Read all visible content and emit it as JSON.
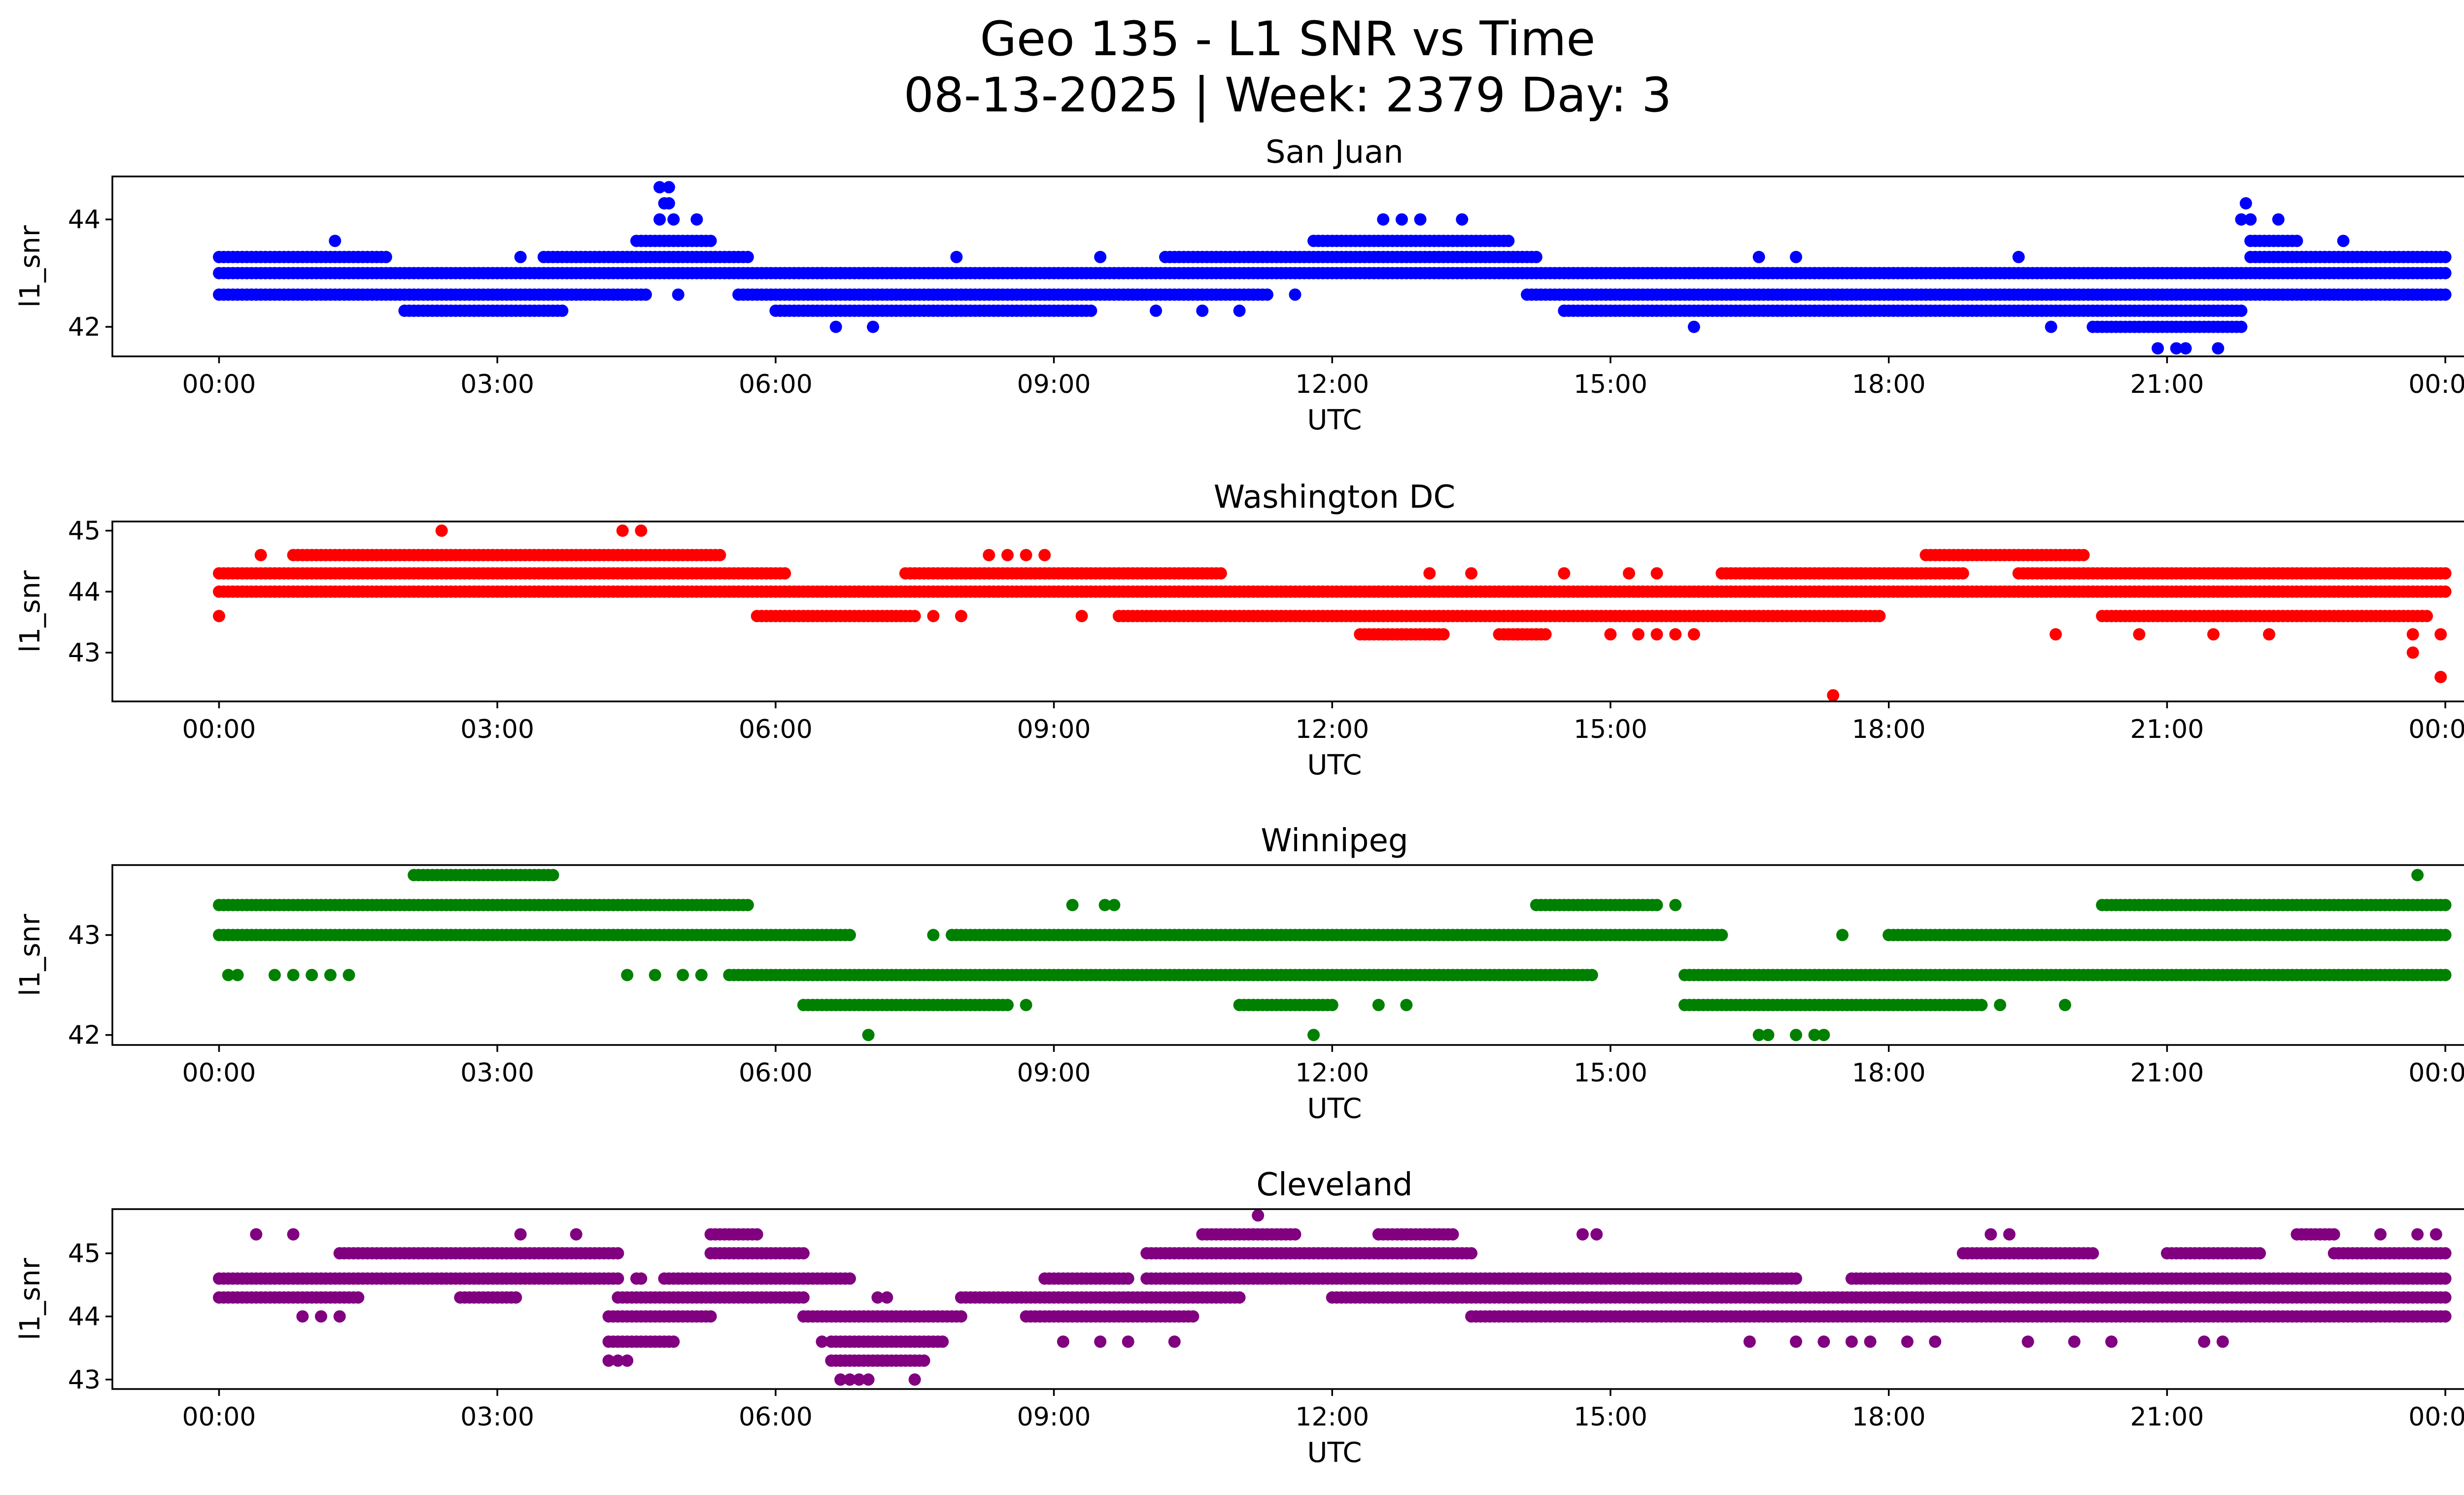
{
  "figure": {
    "title_line1": "Geo 135 - L1 SNR vs Time",
    "title_line2": "08-13-2025 | Week: 2379 Day: 3"
  },
  "chart_data": [
    {
      "type": "scatter",
      "title": "San Juan",
      "xlabel": "UTC",
      "ylabel": "l1_snr",
      "color": "#0000ff",
      "xlim_hours": [
        -1.15,
        25.2
      ],
      "ylim": [
        41.45,
        44.8
      ],
      "xticks": [
        "00:00",
        "03:00",
        "06:00",
        "09:00",
        "12:00",
        "15:00",
        "18:00",
        "21:00",
        "00:00"
      ],
      "yticks": [
        42,
        44
      ],
      "bands": [
        {
          "value": 42.6,
          "segments": [
            [
              0.0,
              4.6
            ],
            [
              5.6,
              11.3
            ],
            [
              14.1,
              24.0
            ]
          ]
        },
        {
          "value": 43.0,
          "segments": [
            [
              0.0,
              24.0
            ]
          ]
        },
        {
          "value": 43.3,
          "segments": [
            [
              0.0,
              1.8
            ],
            [
              3.5,
              5.7
            ],
            [
              10.2,
              14.2
            ],
            [
              21.9,
              24.0
            ]
          ]
        },
        {
          "value": 42.3,
          "segments": [
            [
              2.0,
              3.7
            ],
            [
              6.0,
              9.4
            ],
            [
              14.5,
              21.8
            ]
          ]
        },
        {
          "value": 43.6,
          "segments": [
            [
              4.5,
              5.3
            ],
            [
              11.8,
              13.9
            ],
            [
              21.9,
              22.4
            ]
          ]
        },
        {
          "value": 42.0,
          "segments": [
            [
              20.2,
              21.8
            ]
          ]
        }
      ],
      "points": [
        [
          4.75,
          44.6
        ],
        [
          4.85,
          44.6
        ],
        [
          4.8,
          44.3
        ],
        [
          4.85,
          44.3
        ],
        [
          4.75,
          44.0
        ],
        [
          4.9,
          44.0
        ],
        [
          5.15,
          44.0
        ],
        [
          12.55,
          44.0
        ],
        [
          12.75,
          44.0
        ],
        [
          12.95,
          44.0
        ],
        [
          13.4,
          44.0
        ],
        [
          1.25,
          43.6
        ],
        [
          21.85,
          44.3
        ],
        [
          21.8,
          44.0
        ],
        [
          21.9,
          44.0
        ],
        [
          22.2,
          44.0
        ],
        [
          22.9,
          43.6
        ],
        [
          6.65,
          42.0
        ],
        [
          7.05,
          42.0
        ],
        [
          15.9,
          42.0
        ],
        [
          19.75,
          42.0
        ],
        [
          20.9,
          41.6
        ],
        [
          21.1,
          41.6
        ],
        [
          21.2,
          41.6
        ],
        [
          21.55,
          41.6
        ],
        [
          9.5,
          43.3
        ],
        [
          3.25,
          43.3
        ],
        [
          7.95,
          43.3
        ],
        [
          16.6,
          43.3
        ],
        [
          17.0,
          43.3
        ],
        [
          19.4,
          43.3
        ],
        [
          4.95,
          42.6
        ],
        [
          11.6,
          42.6
        ],
        [
          10.1,
          42.3
        ],
        [
          10.6,
          42.3
        ],
        [
          11.0,
          42.3
        ],
        [
          6.5,
          43.0
        ],
        [
          6.7,
          43.0
        ],
        [
          14.5,
          42.3
        ]
      ]
    },
    {
      "type": "scatter",
      "title": "Washington DC",
      "xlabel": "UTC",
      "ylabel": "l1_snr",
      "color": "#ff0000",
      "xlim_hours": [
        -1.15,
        25.2
      ],
      "ylim": [
        42.2,
        45.15
      ],
      "xticks": [
        "00:00",
        "03:00",
        "06:00",
        "09:00",
        "12:00",
        "15:00",
        "18:00",
        "21:00",
        "00:00"
      ],
      "yticks": [
        43,
        44,
        45
      ],
      "bands": [
        {
          "value": 44.3,
          "segments": [
            [
              0.0,
              6.1
            ],
            [
              7.4,
              10.8
            ],
            [
              16.2,
              18.8
            ],
            [
              19.4,
              24.0
            ]
          ]
        },
        {
          "value": 44.0,
          "segments": [
            [
              0.0,
              24.0
            ]
          ]
        },
        {
          "value": 44.6,
          "segments": [
            [
              0.8,
              5.4
            ],
            [
              18.4,
              20.1
            ]
          ]
        },
        {
          "value": 43.6,
          "segments": [
            [
              5.8,
              7.5
            ],
            [
              9.7,
              17.9
            ],
            [
              20.3,
              23.8
            ]
          ]
        },
        {
          "value": 43.3,
          "segments": [
            [
              12.3,
              13.2
            ],
            [
              13.8,
              14.3
            ]
          ]
        }
      ],
      "points": [
        [
          0.0,
          43.6
        ],
        [
          0.45,
          44.6
        ],
        [
          2.4,
          45.0
        ],
        [
          4.35,
          45.0
        ],
        [
          4.55,
          45.0
        ],
        [
          8.3,
          44.6
        ],
        [
          8.5,
          44.6
        ],
        [
          8.7,
          44.6
        ],
        [
          8.9,
          44.6
        ],
        [
          9.3,
          43.6
        ],
        [
          7.7,
          43.6
        ],
        [
          8.0,
          43.6
        ],
        [
          14.0,
          43.3
        ],
        [
          14.2,
          43.3
        ],
        [
          15.0,
          43.3
        ],
        [
          15.3,
          43.3
        ],
        [
          15.5,
          43.3
        ],
        [
          15.7,
          43.3
        ],
        [
          15.9,
          43.3
        ],
        [
          17.4,
          42.3
        ],
        [
          19.8,
          43.3
        ],
        [
          20.7,
          43.3
        ],
        [
          21.5,
          43.3
        ],
        [
          22.1,
          43.3
        ],
        [
          23.65,
          43.3
        ],
        [
          23.95,
          43.3
        ],
        [
          23.65,
          43.0
        ],
        [
          23.95,
          42.6
        ],
        [
          13.05,
          44.3
        ],
        [
          13.5,
          44.3
        ],
        [
          14.5,
          44.3
        ],
        [
          15.2,
          44.3
        ],
        [
          15.5,
          44.3
        ],
        [
          17.0,
          44.3
        ],
        [
          17.7,
          44.3
        ]
      ]
    },
    {
      "type": "scatter",
      "title": "Winnipeg",
      "xlabel": "UTC",
      "ylabel": "l1_snr",
      "color": "#008000",
      "xlim_hours": [
        -1.15,
        25.2
      ],
      "ylim": [
        41.9,
        43.7
      ],
      "xticks": [
        "00:00",
        "03:00",
        "06:00",
        "09:00",
        "12:00",
        "15:00",
        "18:00",
        "21:00",
        "00:00"
      ],
      "yticks": [
        42,
        43
      ],
      "bands": [
        {
          "value": 43.3,
          "segments": [
            [
              0.0,
              5.7
            ],
            [
              14.2,
              15.5
            ],
            [
              20.3,
              24.0
            ]
          ]
        },
        {
          "value": 43.0,
          "segments": [
            [
              0.0,
              6.8
            ],
            [
              7.9,
              16.2
            ],
            [
              18.0,
              24.0
            ]
          ]
        },
        {
          "value": 42.6,
          "segments": [
            [
              5.5,
              14.8
            ],
            [
              15.8,
              24.0
            ]
          ]
        },
        {
          "value": 42.3,
          "segments": [
            [
              6.3,
              8.5
            ],
            [
              11.0,
              12.0
            ],
            [
              15.8,
              19.0
            ]
          ]
        },
        {
          "value": 43.6,
          "segments": [
            [
              2.1,
              3.6
            ]
          ]
        }
      ],
      "points": [
        [
          0.1,
          42.6
        ],
        [
          0.2,
          42.6
        ],
        [
          0.6,
          42.6
        ],
        [
          0.8,
          42.6
        ],
        [
          1.0,
          42.6
        ],
        [
          1.2,
          42.6
        ],
        [
          1.4,
          42.6
        ],
        [
          4.4,
          42.6
        ],
        [
          4.7,
          42.6
        ],
        [
          5.0,
          42.6
        ],
        [
          5.2,
          42.6
        ],
        [
          7.0,
          42.0
        ],
        [
          7.7,
          43.0
        ],
        [
          9.2,
          43.3
        ],
        [
          9.55,
          43.3
        ],
        [
          9.65,
          43.3
        ],
        [
          11.8,
          42.0
        ],
        [
          12.5,
          42.3
        ],
        [
          12.8,
          42.3
        ],
        [
          8.7,
          42.3
        ],
        [
          15.7,
          43.3
        ],
        [
          16.6,
          42.0
        ],
        [
          16.7,
          42.0
        ],
        [
          17.0,
          42.0
        ],
        [
          17.2,
          42.0
        ],
        [
          17.3,
          42.0
        ],
        [
          17.5,
          43.0
        ],
        [
          19.2,
          42.3
        ],
        [
          19.9,
          42.3
        ],
        [
          23.7,
          43.6
        ]
      ]
    },
    {
      "type": "scatter",
      "title": "Cleveland",
      "xlabel": "UTC",
      "ylabel": "l1_snr",
      "color": "#800080",
      "xlim_hours": [
        -1.15,
        25.2
      ],
      "ylim": [
        42.85,
        45.7
      ],
      "xticks": [
        "00:00",
        "03:00",
        "06:00",
        "09:00",
        "12:00",
        "15:00",
        "18:00",
        "21:00",
        "00:00"
      ],
      "yticks": [
        43,
        44,
        45
      ],
      "bands": [
        {
          "value": 44.6,
          "segments": [
            [
              0.0,
              4.3
            ],
            [
              4.8,
              6.8
            ],
            [
              8.9,
              9.8
            ],
            [
              10.0,
              17.0
            ],
            [
              17.6,
              24.0
            ]
          ]
        },
        {
          "value": 44.3,
          "segments": [
            [
              0.0,
              1.5
            ],
            [
              2.6,
              3.2
            ],
            [
              4.3,
              6.3
            ],
            [
              8.0,
              11.0
            ],
            [
              12.0,
              24.0
            ]
          ]
        },
        {
          "value": 45.0,
          "segments": [
            [
              1.3,
              4.3
            ],
            [
              5.3,
              6.3
            ],
            [
              10.0,
              13.5
            ],
            [
              18.8,
              20.2
            ],
            [
              21.0,
              22.0
            ],
            [
              22.8,
              24.0
            ]
          ]
        },
        {
          "value": 44.0,
          "segments": [
            [
              4.2,
              5.3
            ],
            [
              6.3,
              8.0
            ],
            [
              8.7,
              10.5
            ],
            [
              13.5,
              24.0
            ]
          ]
        },
        {
          "value": 43.6,
          "segments": [
            [
              4.2,
              4.9
            ],
            [
              6.6,
              7.8
            ]
          ]
        },
        {
          "value": 43.3,
          "segments": [
            [
              6.6,
              7.6
            ]
          ]
        },
        {
          "value": 45.3,
          "segments": [
            [
              5.3,
              5.8
            ],
            [
              10.6,
              11.6
            ],
            [
              12.5,
              13.3
            ],
            [
              22.4,
              22.8
            ]
          ]
        }
      ],
      "points": [
        [
          0.4,
          45.3
        ],
        [
          0.8,
          45.3
        ],
        [
          3.25,
          45.3
        ],
        [
          3.85,
          45.3
        ],
        [
          11.2,
          45.6
        ],
        [
          14.7,
          45.3
        ],
        [
          14.85,
          45.3
        ],
        [
          19.1,
          45.3
        ],
        [
          19.3,
          45.3
        ],
        [
          23.3,
          45.3
        ],
        [
          23.7,
          45.3
        ],
        [
          23.9,
          45.3
        ],
        [
          4.2,
          43.3
        ],
        [
          4.3,
          43.3
        ],
        [
          4.4,
          43.3
        ],
        [
          6.7,
          43.0
        ],
        [
          6.8,
          43.0
        ],
        [
          6.9,
          43.0
        ],
        [
          7.0,
          43.0
        ],
        [
          7.5,
          43.0
        ],
        [
          6.5,
          43.6
        ],
        [
          6.7,
          43.3
        ],
        [
          7.1,
          44.3
        ],
        [
          7.2,
          44.3
        ],
        [
          10.3,
          43.6
        ],
        [
          9.1,
          43.6
        ],
        [
          9.5,
          43.6
        ],
        [
          9.8,
          43.6
        ],
        [
          16.5,
          43.6
        ],
        [
          17.0,
          43.6
        ],
        [
          17.3,
          43.6
        ],
        [
          17.6,
          43.6
        ],
        [
          17.8,
          43.6
        ],
        [
          18.2,
          43.6
        ],
        [
          18.5,
          43.6
        ],
        [
          19.5,
          43.6
        ],
        [
          20.0,
          43.6
        ],
        [
          20.4,
          43.6
        ],
        [
          21.4,
          43.6
        ],
        [
          21.6,
          43.6
        ],
        [
          0.9,
          44.0
        ],
        [
          1.1,
          44.0
        ],
        [
          1.3,
          44.0
        ],
        [
          4.5,
          44.6
        ],
        [
          4.55,
          44.6
        ],
        [
          22.6,
          44.0
        ],
        [
          23.2,
          44.0
        ],
        [
          23.5,
          44.0
        ]
      ]
    }
  ]
}
